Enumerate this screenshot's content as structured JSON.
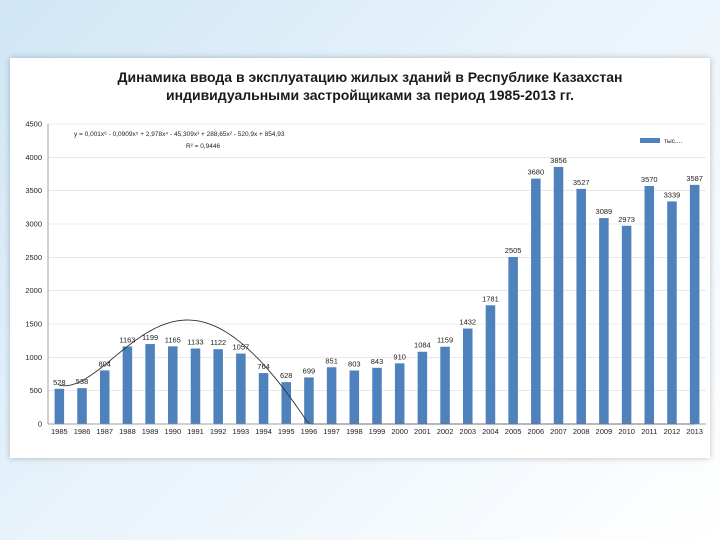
{
  "chart_data": {
    "type": "bar",
    "title_line1": "Динамика ввода в эксплуатацию жилых зданий в Республике Казахстан",
    "title_line2": "индивидуальными застройщиками за период 1985-2013 гг.",
    "categories": [
      "1985",
      "1986",
      "1987",
      "1988",
      "1989",
      "1990",
      "1991",
      "1992",
      "1993",
      "1994",
      "1995",
      "1996",
      "1997",
      "1998",
      "1999",
      "2000",
      "2001",
      "2002",
      "2003",
      "2004",
      "2005",
      "2006",
      "2007",
      "2008",
      "2009",
      "2010",
      "2011",
      "2012",
      "2013"
    ],
    "series": [
      {
        "name": "тыс....",
        "values": [
          528,
          538,
          804,
          1163,
          1199,
          1165,
          1133,
          1122,
          1057,
          764,
          628,
          699,
          851,
          803,
          843,
          910,
          1084,
          1159,
          1432,
          1781,
          2505,
          3680,
          3856,
          3527,
          3089,
          2973,
          3570,
          3339,
          3587
        ]
      }
    ],
    "ylim": [
      0,
      4500
    ],
    "yticks": [
      0,
      500,
      1000,
      1500,
      2000,
      2500,
      3000,
      3500,
      4000,
      4500
    ],
    "trendline": {
      "equation": "y = 0,001x⁶ - 0,0909x⁵ + 2,978x⁴ - 45,309x³ + 288,65x² - 520,9x + 854,93",
      "r2": "R² = 0,9446",
      "coefficients": [
        854.93,
        -520.9,
        288.65,
        -45.309,
        2.978,
        -0.0909,
        0.001
      ]
    },
    "legend_position": "top-right",
    "bar_color": "#4f81bd",
    "grid": true
  }
}
